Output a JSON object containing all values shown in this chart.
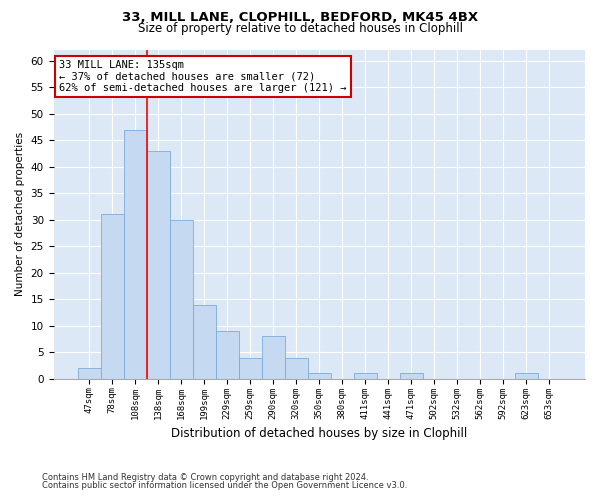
{
  "title1": "33, MILL LANE, CLOPHILL, BEDFORD, MK45 4BX",
  "title2": "Size of property relative to detached houses in Clophill",
  "xlabel": "Distribution of detached houses by size in Clophill",
  "ylabel": "Number of detached properties",
  "categories": [
    "47sqm",
    "78sqm",
    "108sqm",
    "138sqm",
    "168sqm",
    "199sqm",
    "229sqm",
    "259sqm",
    "290sqm",
    "320sqm",
    "350sqm",
    "380sqm",
    "411sqm",
    "441sqm",
    "471sqm",
    "502sqm",
    "532sqm",
    "562sqm",
    "592sqm",
    "623sqm",
    "653sqm"
  ],
  "values": [
    2,
    31,
    47,
    43,
    30,
    14,
    9,
    4,
    8,
    4,
    1,
    0,
    1,
    0,
    1,
    0,
    0,
    0,
    0,
    1,
    0
  ],
  "bar_color": "#c5d9f0",
  "bar_edge_color": "#7aacdc",
  "annotation_line1": "33 MILL LANE: 135sqm",
  "annotation_line2": "← 37% of detached houses are smaller (72)",
  "annotation_line3": "62% of semi-detached houses are larger (121) →",
  "annotation_box_edge": "#cc0000",
  "ylim": [
    0,
    62
  ],
  "yticks": [
    0,
    5,
    10,
    15,
    20,
    25,
    30,
    35,
    40,
    45,
    50,
    55,
    60
  ],
  "footer1": "Contains HM Land Registry data © Crown copyright and database right 2024.",
  "footer2": "Contains public sector information licensed under the Open Government Licence v3.0.",
  "fig_bg": "#ffffff",
  "plot_bg": "#dce8f5"
}
